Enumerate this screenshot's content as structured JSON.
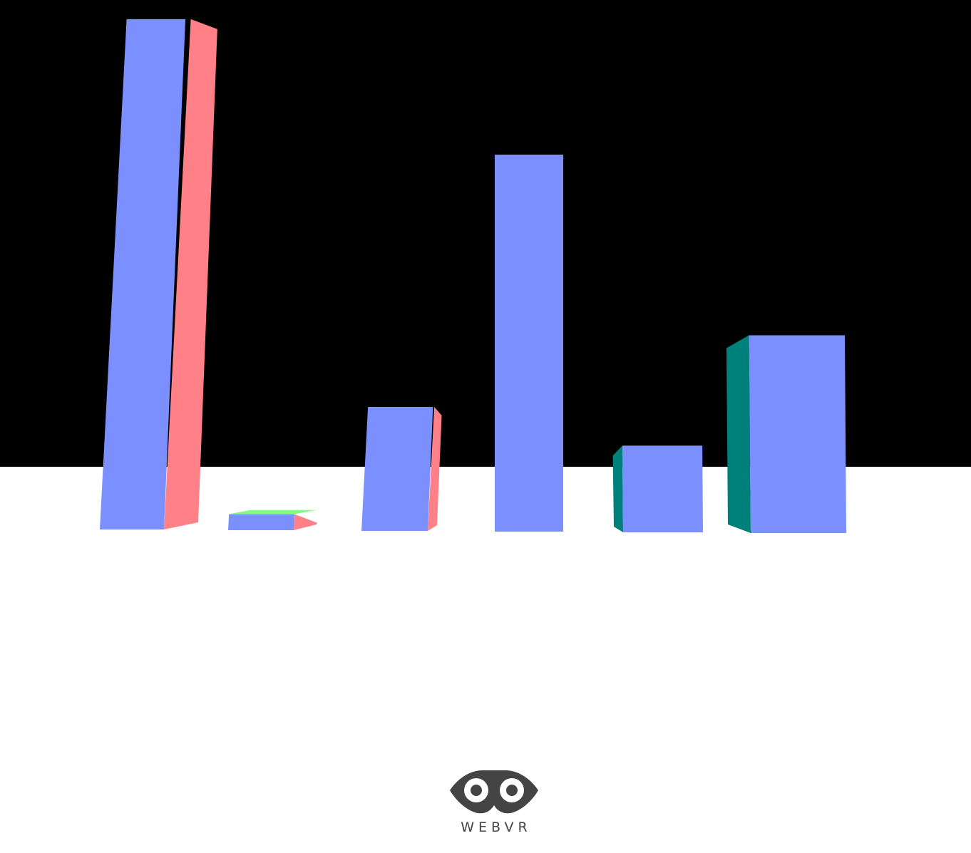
{
  "scene": {
    "sky_color": "#000000",
    "floor_color": "#ffffff",
    "face_colors": {
      "front": "#7b8fff",
      "right": "#ff8087",
      "left": "#00807a",
      "top": "#80ff80"
    }
  },
  "chart_data": {
    "type": "bar",
    "categories": [
      "",
      "",
      "",
      "",
      "",
      ""
    ],
    "values": [
      9.6,
      0.3,
      2.4,
      7.1,
      1.6,
      3.7
    ],
    "title": "",
    "xlabel": "",
    "ylabel": ""
  },
  "vr_button": {
    "icon": "webvr-goggles-icon",
    "label": "WEBVR",
    "color": "#444444"
  }
}
